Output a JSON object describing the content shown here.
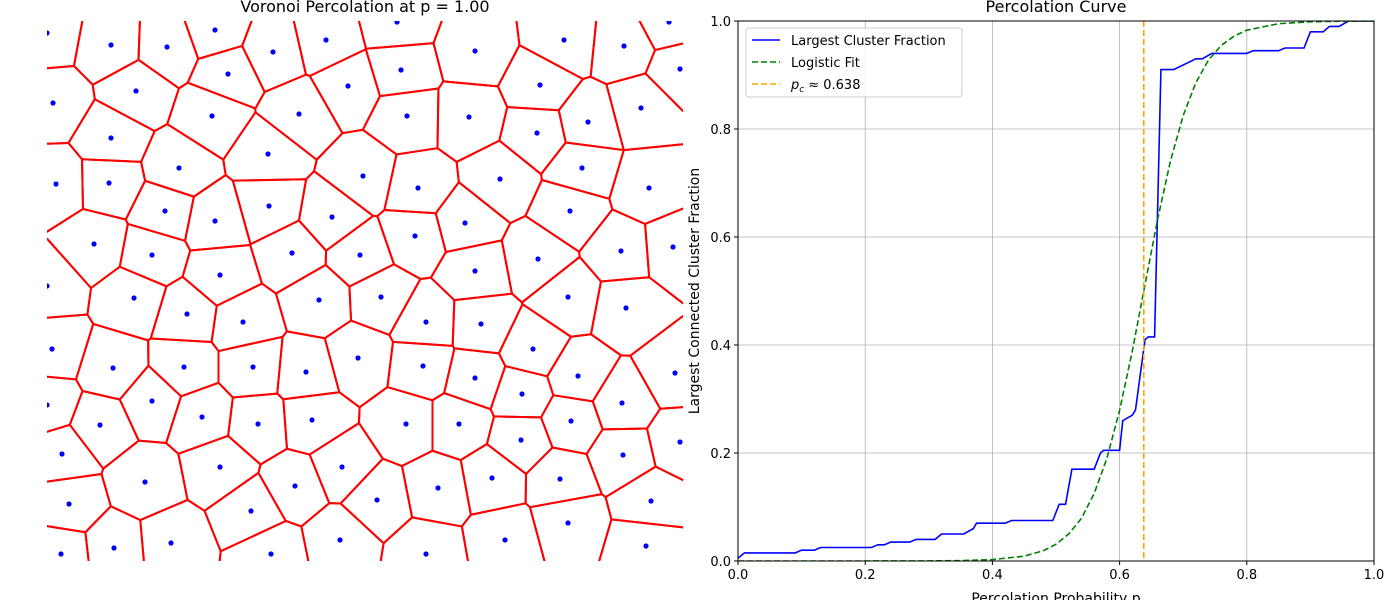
{
  "chart_data": [
    {
      "type": "voronoi",
      "title": "Voronoi Percolation at p = 1.00",
      "xlim": [
        0,
        636
      ],
      "ylim": [
        0,
        540
      ],
      "point_color": "#0000ff",
      "edge_color": "#ff0000",
      "x": [
        0,
        64,
        120,
        168,
        226,
        279,
        350,
        428,
        517,
        577,
        622,
        633,
        6,
        89,
        181,
        301,
        354,
        493,
        594,
        64,
        165,
        252,
        360,
        422,
        490,
        541,
        9,
        62,
        132,
        221,
        316,
        371,
        453,
        535,
        602,
        118,
        168,
        222,
        285,
        418,
        523,
        626,
        47,
        105,
        173,
        245,
        313,
        368,
        428,
        491,
        574,
        0,
        87,
        140,
        196,
        272,
        334,
        379,
        434,
        521,
        579,
        5,
        66,
        137,
        206,
        259,
        311,
        376,
        428,
        486,
        531,
        628,
        0,
        105,
        155,
        211,
        265,
        359,
        412,
        475,
        524,
        575,
        633,
        15,
        53,
        173,
        248,
        295,
        391,
        445,
        474,
        513,
        576,
        22,
        98,
        204,
        330,
        458,
        521,
        604,
        14,
        67,
        124,
        224,
        293,
        379,
        599
      ],
      "y": [
        528,
        516,
        514,
        531,
        509,
        521,
        539,
        510,
        521,
        515,
        539,
        492,
        458,
        470,
        487,
        475,
        491,
        476,
        453,
        423,
        445,
        447,
        445,
        444,
        428,
        439,
        377,
        378,
        393,
        407,
        385,
        373,
        382,
        393,
        373,
        350,
        340,
        355,
        344,
        338,
        350,
        314,
        317,
        306,
        286,
        308,
        306,
        325,
        290,
        302,
        310,
        275,
        263,
        247,
        239,
        261,
        264,
        239,
        237,
        264,
        253,
        212,
        193,
        194,
        194,
        189,
        203,
        195,
        183,
        212,
        185,
        188,
        156,
        160,
        144,
        137,
        141,
        137,
        137,
        167,
        140,
        158,
        119,
        107,
        136,
        94,
        75,
        94,
        73,
        83,
        121,
        82,
        106,
        57,
        79,
        50,
        61,
        21,
        38,
        60,
        7,
        13,
        18,
        7,
        21,
        7,
        15
      ]
    },
    {
      "type": "line",
      "title": "Percolation Curve",
      "xlabel": "Percolation Probability p",
      "ylabel": "Largest Connected Cluster Fraction",
      "xlim": [
        0,
        1
      ],
      "ylim": [
        0,
        1
      ],
      "xticks": [
        {
          "value": 0,
          "label": "0.0"
        },
        {
          "value": 0.2,
          "label": "0.2"
        },
        {
          "value": 0.4,
          "label": "0.4"
        },
        {
          "value": 0.6,
          "label": "0.6"
        },
        {
          "value": 0.8,
          "label": "0.8"
        },
        {
          "value": 1,
          "label": "1.0"
        }
      ],
      "yticks": [
        {
          "value": 0,
          "label": "0.0"
        },
        {
          "value": 0.2,
          "label": "0.2"
        },
        {
          "value": 0.4,
          "label": "0.4"
        },
        {
          "value": 0.6,
          "label": "0.6"
        },
        {
          "value": 0.8,
          "label": "0.8"
        },
        {
          "value": 1,
          "label": "1.0"
        }
      ],
      "grid": true,
      "legend": "upper left",
      "series": [
        {
          "name": "Largest Cluster Fraction",
          "color": "#0000ff",
          "dash": "solid",
          "x": [
            0,
            0.01,
            0.09,
            0.1,
            0.12,
            0.13,
            0.21,
            0.22,
            0.23,
            0.24,
            0.27,
            0.28,
            0.31,
            0.32,
            0.355,
            0.37,
            0.375,
            0.42,
            0.43,
            0.495,
            0.505,
            0.515,
            0.525,
            0.56,
            0.57,
            0.575,
            0.6,
            0.605,
            0.62,
            0.625,
            0.64,
            0.645,
            0.655,
            0.665,
            0.685,
            0.72,
            0.73,
            0.745,
            0.8,
            0.81,
            0.85,
            0.86,
            0.89,
            0.9,
            0.92,
            0.93,
            0.945,
            0.96,
            1.0
          ],
          "values": [
            0.005,
            0.015,
            0.015,
            0.02,
            0.02,
            0.025,
            0.025,
            0.03,
            0.03,
            0.035,
            0.035,
            0.04,
            0.04,
            0.05,
            0.05,
            0.06,
            0.07,
            0.07,
            0.075,
            0.075,
            0.105,
            0.105,
            0.17,
            0.17,
            0.2,
            0.205,
            0.205,
            0.26,
            0.27,
            0.28,
            0.41,
            0.415,
            0.415,
            0.91,
            0.91,
            0.93,
            0.93,
            0.94,
            0.94,
            0.945,
            0.945,
            0.95,
            0.95,
            0.98,
            0.98,
            0.99,
            0.99,
            1.0,
            1.0
          ]
        },
        {
          "name": "Logistic Fit",
          "color": "#008000",
          "dash": "dashed",
          "x": [
            0,
            0.1,
            0.2,
            0.3,
            0.35,
            0.4,
            0.45,
            0.48,
            0.5,
            0.52,
            0.54,
            0.56,
            0.58,
            0.6,
            0.62,
            0.638,
            0.66,
            0.68,
            0.7,
            0.72,
            0.74,
            0.76,
            0.78,
            0.8,
            0.85,
            0.9,
            0.95,
            1.0
          ],
          "values": [
            0,
            0,
            2e-05,
            0.0002,
            0.0007,
            0.0026,
            0.009,
            0.019,
            0.031,
            0.05,
            0.079,
            0.125,
            0.19,
            0.279,
            0.389,
            0.5,
            0.634,
            0.741,
            0.825,
            0.886,
            0.928,
            0.955,
            0.972,
            0.983,
            0.995,
            0.9986,
            0.9996,
            0.9999
          ]
        }
      ],
      "vline": {
        "x": 0.638,
        "color": "#ffa500",
        "label_symbol": "p",
        "label_subscript": "c",
        "label_rest": "≈ 0.638"
      }
    }
  ]
}
